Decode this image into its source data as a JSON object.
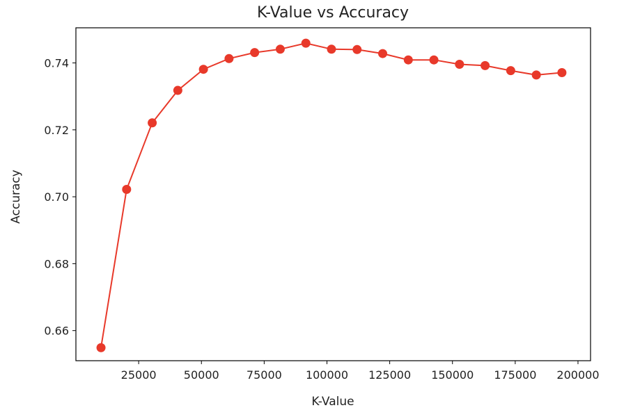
{
  "chart_data": {
    "type": "line",
    "title": "K-Value vs Accuracy",
    "xlabel": "K-Value",
    "ylabel": "Accuracy",
    "xlim": [
      0,
      205000
    ],
    "ylim": [
      0.651,
      0.7505
    ],
    "xticks": [
      25000,
      50000,
      75000,
      100000,
      125000,
      150000,
      175000,
      200000
    ],
    "xtick_labels": [
      "25000",
      "50000",
      "75000",
      "100000",
      "125000",
      "150000",
      "175000",
      "200000"
    ],
    "yticks": [
      0.66,
      0.68,
      0.7,
      0.72,
      0.74
    ],
    "ytick_labels": [
      "0.66",
      "0.68",
      "0.70",
      "0.72",
      "0.74"
    ],
    "grid": false,
    "legend": "none",
    "line_color": "#e8392a",
    "marker": "circle",
    "series": [
      {
        "x": [
          10000,
          20200,
          30400,
          40600,
          50800,
          61000,
          71200,
          81400,
          91600,
          101800,
          112000,
          122200,
          132400,
          142600,
          152800,
          163000,
          173200,
          183400,
          193600
        ],
        "y": [
          0.6549,
          0.7022,
          0.7221,
          0.7318,
          0.7381,
          0.7413,
          0.7431,
          0.7441,
          0.7459,
          0.7441,
          0.744,
          0.7428,
          0.7409,
          0.7409,
          0.7396,
          0.7392,
          0.7377,
          0.7364,
          0.7371
        ]
      }
    ]
  }
}
